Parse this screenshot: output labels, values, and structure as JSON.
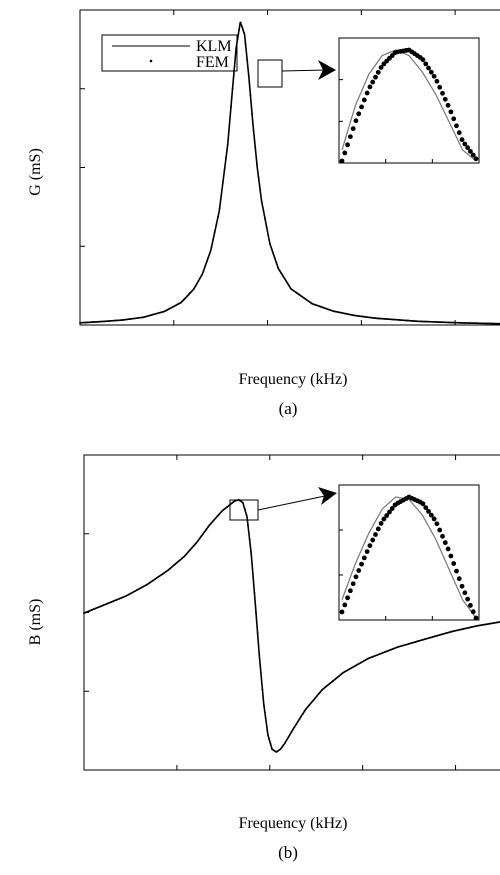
{
  "chart_data": [
    {
      "type": "line",
      "panel_label": "(a)",
      "xlabel": "Frequency (kHz)",
      "ylabel": "G (mS)",
      "xlim": [
        0,
        1
      ],
      "ylim": [
        0,
        1
      ],
      "x_ticks": 4,
      "y_ticks": 4,
      "legend": {
        "position": "top-left",
        "entries": [
          "KLM",
          "FEM"
        ]
      },
      "series": [
        {
          "name": "KLM",
          "style": "line",
          "x": [
            0.0,
            0.05,
            0.1,
            0.15,
            0.2,
            0.24,
            0.27,
            0.29,
            0.31,
            0.33,
            0.35,
            0.36,
            0.37,
            0.38,
            0.39,
            0.4,
            0.41,
            0.42,
            0.43,
            0.45,
            0.47,
            0.5,
            0.55,
            0.6,
            0.65,
            0.7,
            0.8,
            0.9,
            1.0
          ],
          "y": [
            0.007,
            0.011,
            0.016,
            0.025,
            0.044,
            0.073,
            0.117,
            0.165,
            0.242,
            0.369,
            0.584,
            0.742,
            0.898,
            0.982,
            0.941,
            0.806,
            0.648,
            0.511,
            0.404,
            0.263,
            0.183,
            0.117,
            0.069,
            0.045,
            0.031,
            0.022,
            0.012,
            0.007,
            0.004
          ]
        },
        {
          "name": "FEM",
          "style": "dots",
          "x": [
            0.0,
            0.05,
            0.1,
            0.15,
            0.2,
            0.24,
            0.27,
            0.29,
            0.31,
            0.33,
            0.35,
            0.36,
            0.37,
            0.38,
            0.39,
            0.4,
            0.41,
            0.42,
            0.43,
            0.45,
            0.47,
            0.5,
            0.55,
            0.6,
            0.65,
            0.7,
            0.8,
            0.9,
            1.0
          ],
          "y": [
            0.007,
            0.011,
            0.016,
            0.025,
            0.044,
            0.073,
            0.117,
            0.165,
            0.242,
            0.369,
            0.584,
            0.742,
            0.898,
            0.982,
            0.941,
            0.806,
            0.648,
            0.511,
            0.404,
            0.263,
            0.183,
            0.117,
            0.069,
            0.045,
            0.031,
            0.022,
            0.012,
            0.007,
            0.004
          ]
        }
      ],
      "inset": {
        "x": [
          0.0,
          0.1,
          0.2,
          0.3,
          0.4,
          0.5,
          0.6,
          0.7,
          0.8,
          0.9,
          1.0
        ],
        "klm": [
          0.1,
          0.5,
          0.78,
          0.95,
          1.0,
          0.95,
          0.8,
          0.6,
          0.35,
          0.1,
          0.0
        ],
        "fem": [
          0.0,
          0.35,
          0.65,
          0.86,
          0.98,
          1.0,
          0.92,
          0.74,
          0.48,
          0.18,
          0.02
        ]
      }
    },
    {
      "type": "line",
      "panel_label": "(b)",
      "xlabel": "Frequency (kHz)",
      "ylabel": "B (mS)",
      "xlim": [
        0,
        1
      ],
      "ylim": [
        0,
        1
      ],
      "x_ticks": 4,
      "y_ticks": 4,
      "series": [
        {
          "name": "KLM",
          "style": "line",
          "x": [
            0.0,
            0.05,
            0.1,
            0.15,
            0.2,
            0.24,
            0.27,
            0.3,
            0.33,
            0.36,
            0.37,
            0.38,
            0.39,
            0.4,
            0.41,
            0.42,
            0.43,
            0.44,
            0.45,
            0.46,
            0.47,
            0.48,
            0.5,
            0.53,
            0.57,
            0.62,
            0.68,
            0.75,
            0.82,
            0.88,
            0.94,
            1.0
          ],
          "y": [
            0.52,
            0.55,
            0.58,
            0.62,
            0.67,
            0.72,
            0.77,
            0.83,
            0.88,
            0.915,
            0.92,
            0.91,
            0.86,
            0.73,
            0.55,
            0.36,
            0.2,
            0.09,
            0.04,
            0.03,
            0.04,
            0.06,
            0.11,
            0.18,
            0.25,
            0.31,
            0.36,
            0.4,
            0.43,
            0.455,
            0.475,
            0.49
          ]
        },
        {
          "name": "FEM",
          "style": "dots",
          "x": [
            0.0,
            0.05,
            0.1,
            0.15,
            0.2,
            0.24,
            0.27,
            0.3,
            0.33,
            0.36,
            0.37,
            0.38,
            0.39,
            0.4,
            0.41,
            0.42,
            0.43,
            0.44,
            0.45,
            0.46,
            0.47,
            0.48,
            0.5,
            0.53,
            0.57,
            0.62,
            0.68,
            0.75,
            0.82,
            0.88,
            0.94,
            1.0
          ],
          "y": [
            0.52,
            0.55,
            0.58,
            0.62,
            0.67,
            0.72,
            0.77,
            0.83,
            0.88,
            0.915,
            0.92,
            0.91,
            0.86,
            0.73,
            0.55,
            0.36,
            0.2,
            0.09,
            0.04,
            0.03,
            0.04,
            0.06,
            0.11,
            0.18,
            0.25,
            0.31,
            0.36,
            0.4,
            0.43,
            0.455,
            0.475,
            0.49
          ]
        }
      ],
      "inset": {
        "x": [
          0.0,
          0.1,
          0.2,
          0.3,
          0.4,
          0.5,
          0.6,
          0.7,
          0.8,
          0.9,
          1.0
        ],
        "klm": [
          0.15,
          0.45,
          0.7,
          0.9,
          1.0,
          0.98,
          0.85,
          0.65,
          0.4,
          0.15,
          0.0
        ],
        "fem": [
          0.05,
          0.33,
          0.58,
          0.8,
          0.94,
          1.0,
          0.95,
          0.8,
          0.55,
          0.25,
          0.0
        ]
      }
    }
  ]
}
